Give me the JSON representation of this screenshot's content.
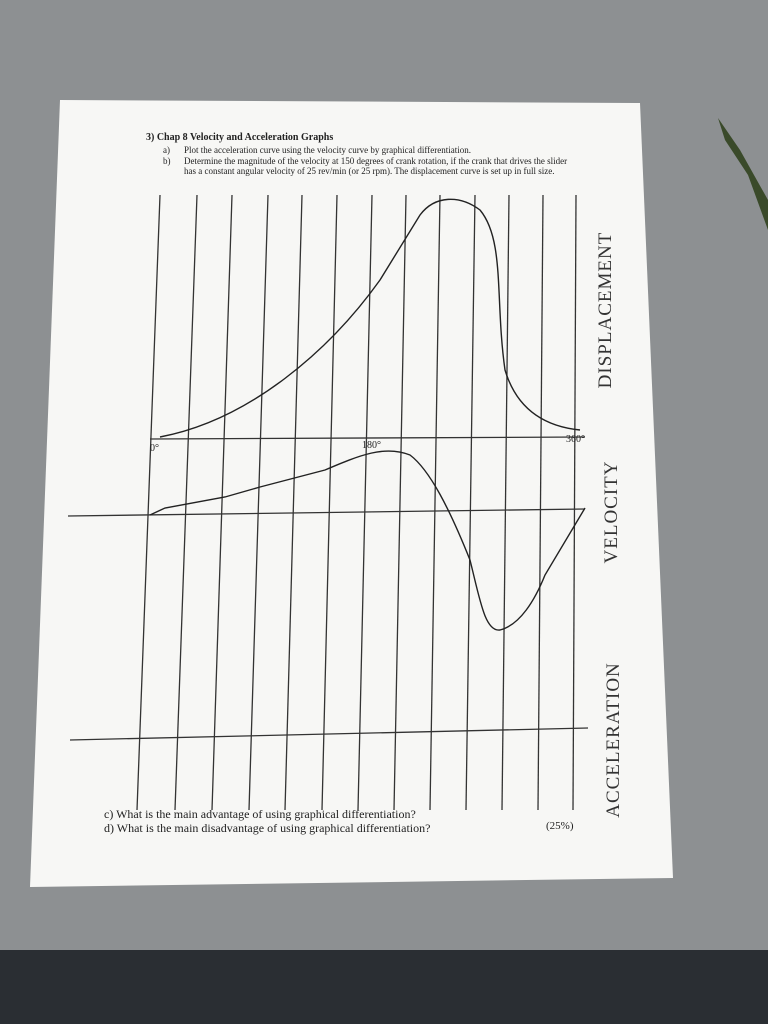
{
  "header": {
    "title": "3) Chap 8 Velocity and Acceleration Graphs"
  },
  "items": [
    {
      "label": "a)",
      "text": "Plot the acceleration curve using the velocity curve by graphical differentiation."
    },
    {
      "label": "b)",
      "text": "Determine the magnitude of the velocity at 150 degrees of crank rotation, if the crank that drives the slider has a constant angular velocity of 25 rev/min (or 25 rpm). The displacement curve is set up in full size."
    }
  ],
  "axis_labels": {
    "start": "0°",
    "middle": "180°",
    "end": "360°"
  },
  "graph_labels": [
    "DISPLACEMENT",
    "VELOCITY",
    "ACCELERATION"
  ],
  "questions": [
    "c) What is the main advantage of using graphical differentiation?",
    "d) What is the main disadvantage of using graphical differentiation?"
  ],
  "score": "(25%)"
}
